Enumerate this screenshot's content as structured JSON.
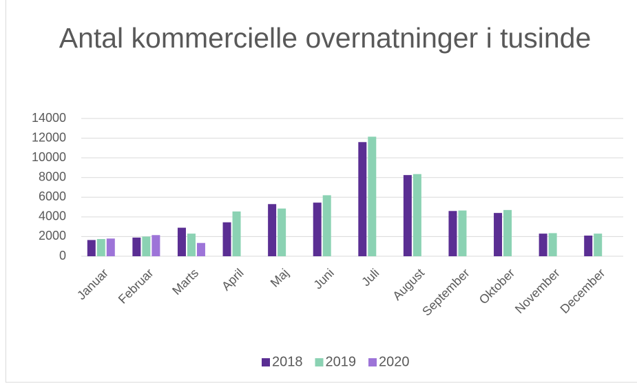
{
  "chart_data": {
    "type": "bar",
    "title": "Antal kommercielle overnatninger i tusinde",
    "categories": [
      "Januar",
      "Februar",
      "Marts",
      "April",
      "Maj",
      "Juni",
      "Juli",
      "August",
      "September",
      "Oktober",
      "November",
      "December"
    ],
    "series": [
      {
        "name": "2018",
        "color": "#5a2e93",
        "values": [
          1650,
          1900,
          2900,
          3450,
          5300,
          5450,
          11600,
          8250,
          4600,
          4400,
          2300,
          2100
        ]
      },
      {
        "name": "2019",
        "color": "#8bd2b3",
        "values": [
          1750,
          2000,
          2300,
          4550,
          4850,
          6200,
          12150,
          8350,
          4650,
          4700,
          2350,
          2300
        ]
      },
      {
        "name": "2020",
        "color": "#9d74d8",
        "values": [
          1800,
          2150,
          1350,
          null,
          null,
          null,
          null,
          null,
          null,
          null,
          null,
          null
        ]
      }
    ],
    "ylim": [
      0,
      14000
    ],
    "yticks": [
      0,
      2000,
      4000,
      6000,
      8000,
      10000,
      12000,
      14000
    ],
    "grid": true,
    "legend": "bottom"
  }
}
